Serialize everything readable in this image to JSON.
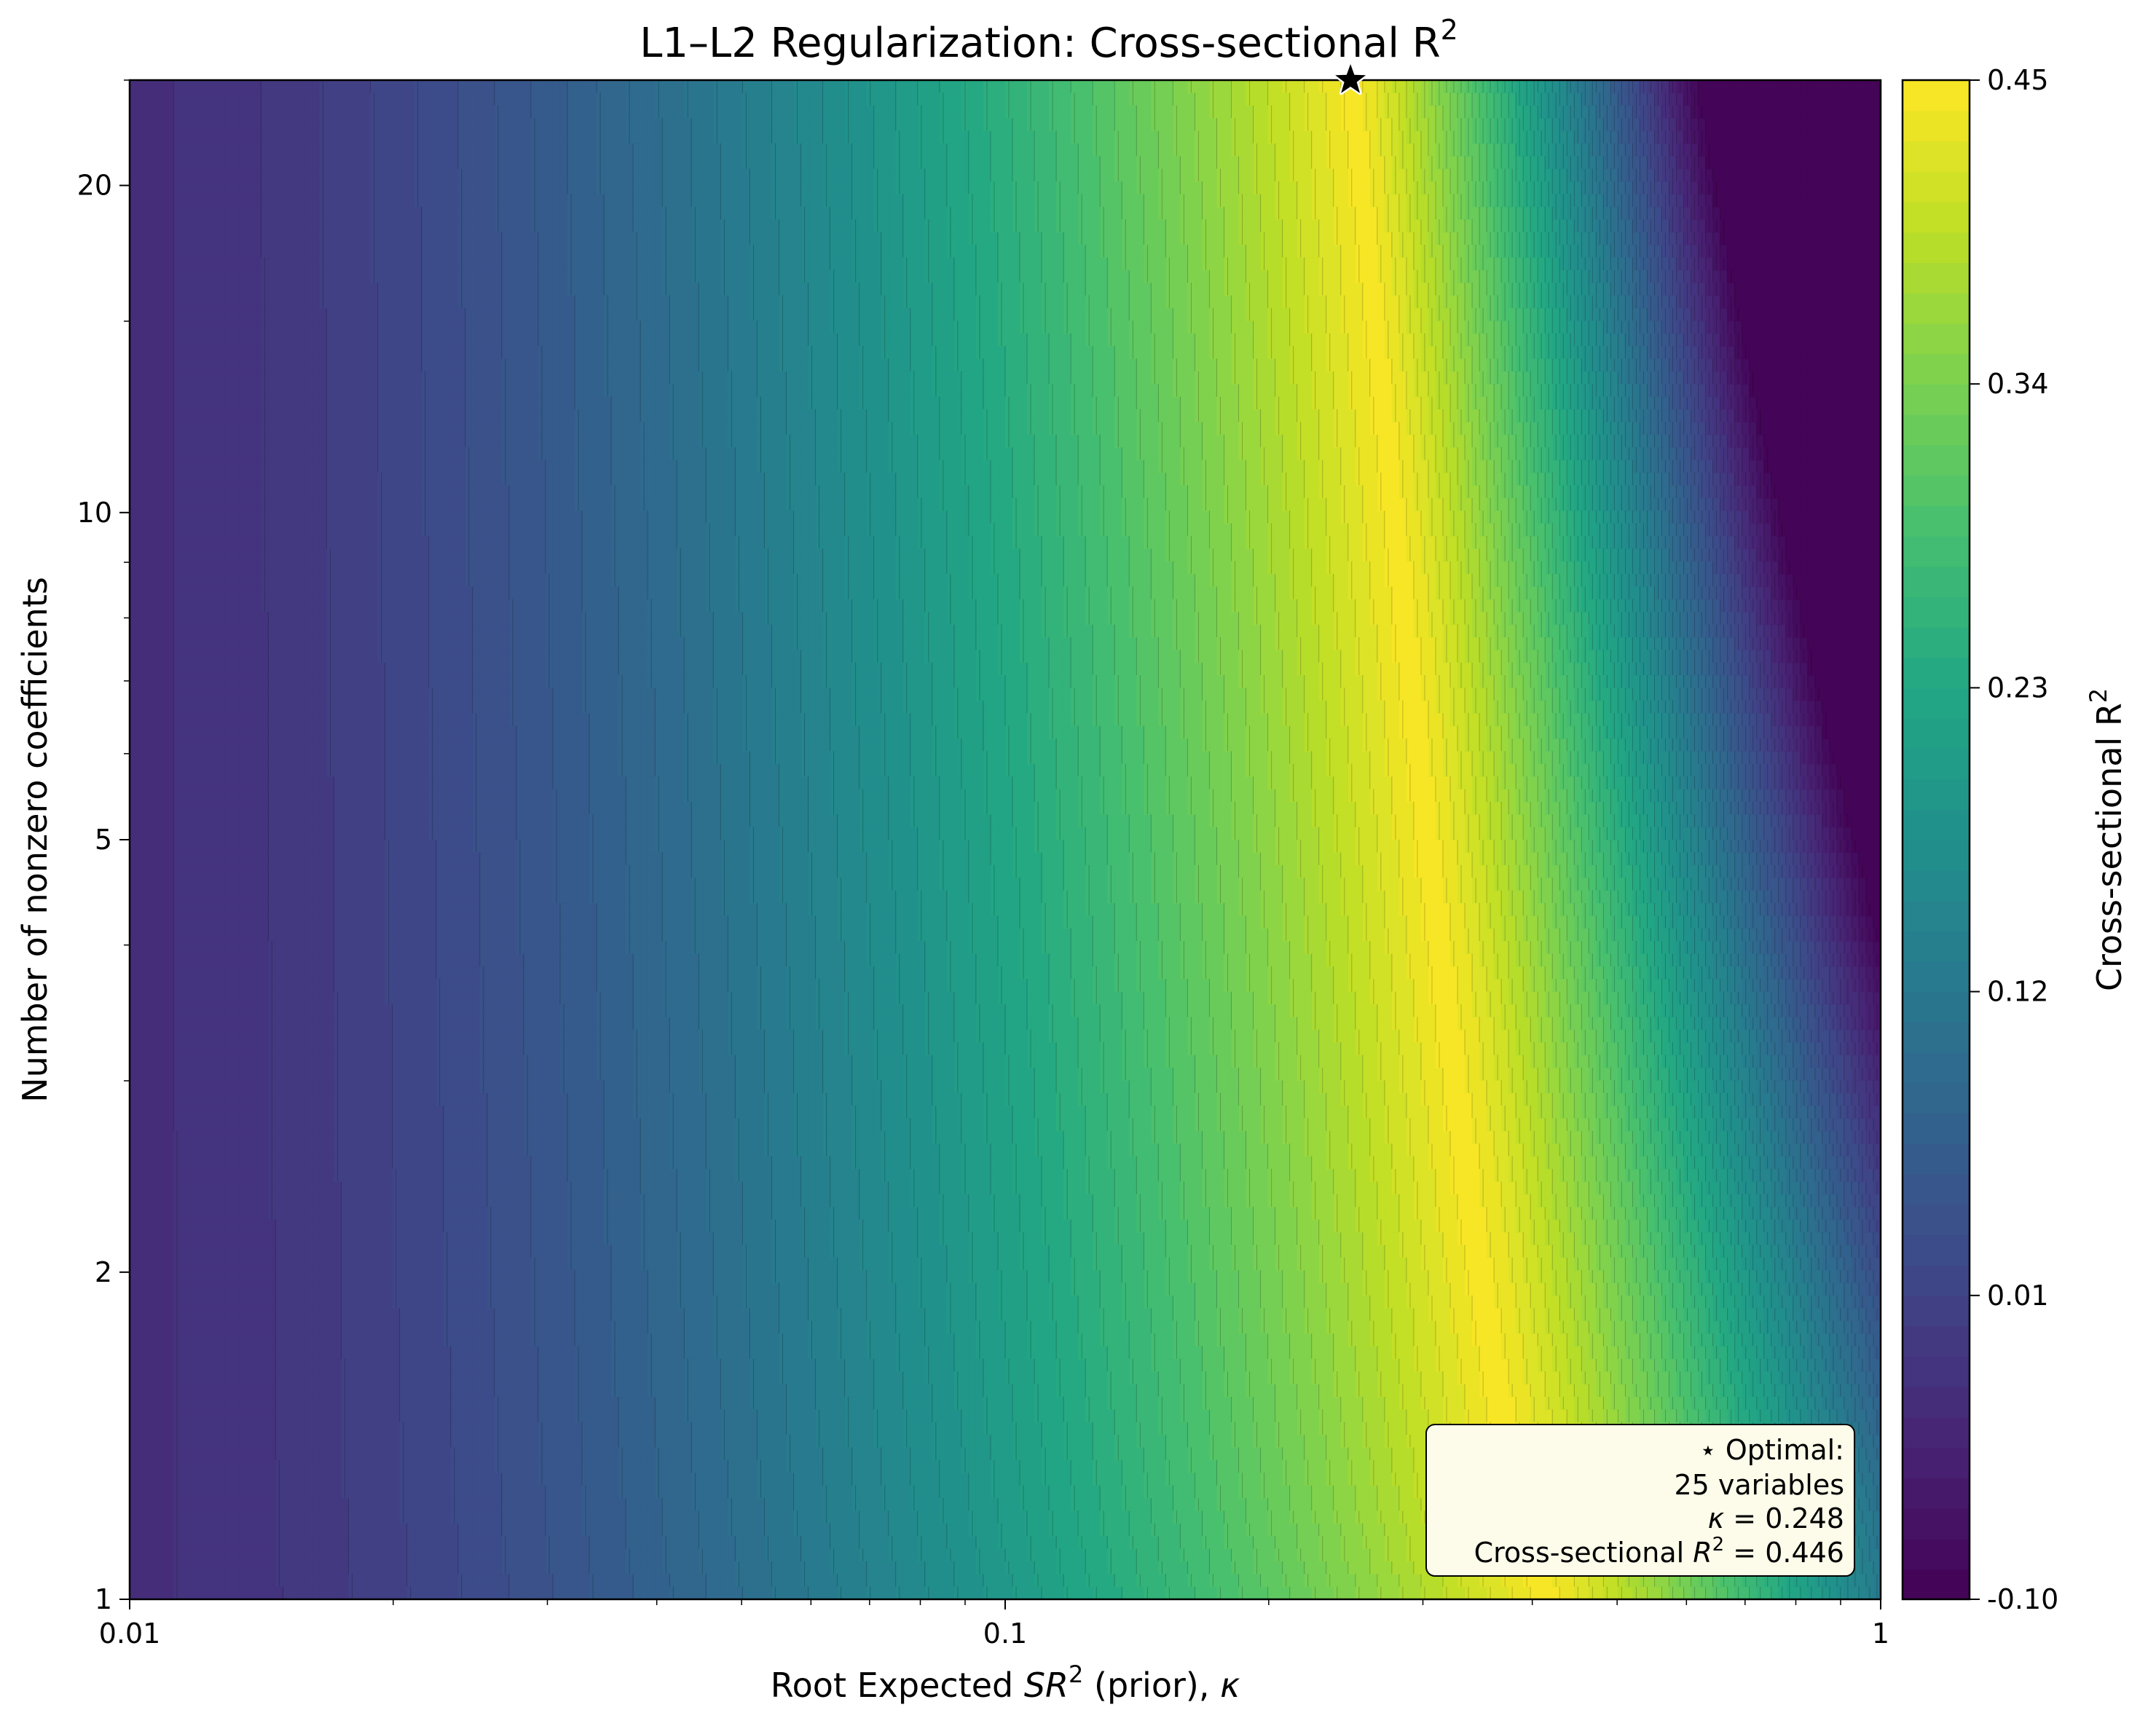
{
  "chart_data": {
    "type": "heatmap",
    "subtype": "filled-contour",
    "title": "L1–L2 Regularization: Cross-sectional R",
    "title_superscript": "2",
    "xlabel": {
      "pre": "Root Expected ",
      "math": "SR",
      "sup": "2",
      "post": " (prior), ",
      "symbol": "κ"
    },
    "ylabel": "Number of nonzero coefficients",
    "x_scale": "log",
    "y_scale": "log",
    "xlim": [
      0.01,
      1
    ],
    "ylim": [
      1,
      25
    ],
    "x_ticks": [
      {
        "value": 0.01,
        "label": "0.01"
      },
      {
        "value": 0.1,
        "label": "0.1"
      },
      {
        "value": 1,
        "label": "1"
      }
    ],
    "y_ticks": [
      {
        "value": 1,
        "label": "1"
      },
      {
        "value": 2,
        "label": "2"
      },
      {
        "value": 5,
        "label": "5"
      },
      {
        "value": 10,
        "label": "10"
      },
      {
        "value": 20,
        "label": "20"
      }
    ],
    "colormap": "viridis",
    "colorbar": {
      "label": "Cross-sectional R",
      "label_superscript": "2",
      "range": [
        -0.1,
        0.45
      ],
      "ticks": [
        {
          "value": -0.1,
          "label": "-0.10"
        },
        {
          "value": 0.01,
          "label": "0.01"
        },
        {
          "value": 0.12,
          "label": "0.12"
        },
        {
          "value": 0.23,
          "label": "0.23"
        },
        {
          "value": 0.34,
          "label": "0.34"
        },
        {
          "value": 0.45,
          "label": "0.45"
        }
      ],
      "levels": 50
    },
    "optimum": {
      "kappa": 0.248,
      "n_variables": 25,
      "r2": 0.446
    },
    "approx_ridge": {
      "kappa_at_n1": 0.01,
      "r2": -0.025,
      "peak_kappa_by_n": [
        {
          "n": 1,
          "kappa": 0.42
        },
        {
          "n": 2,
          "kappa": 0.36
        },
        {
          "n": 5,
          "kappa": 0.29
        },
        {
          "n": 10,
          "kappa": 0.27
        },
        {
          "n": 25,
          "kappa": 0.248
        }
      ]
    },
    "grid": false
  },
  "annotation": {
    "line1": "⋆ Optimal:",
    "line2": "25 variables",
    "line3_symbol": "κ",
    "line3_rest": " = 0.248",
    "line4_pre": "Cross-sectional ",
    "line4_math": "R",
    "line4_sup": "2",
    "line4_post": " = 0.446",
    "position": "bottom-right"
  },
  "colors": {
    "star_fill": "#000000",
    "star_edge": "#ffffff",
    "annotation_bg": "#fdfbe9",
    "contour_line": "#000000"
  }
}
